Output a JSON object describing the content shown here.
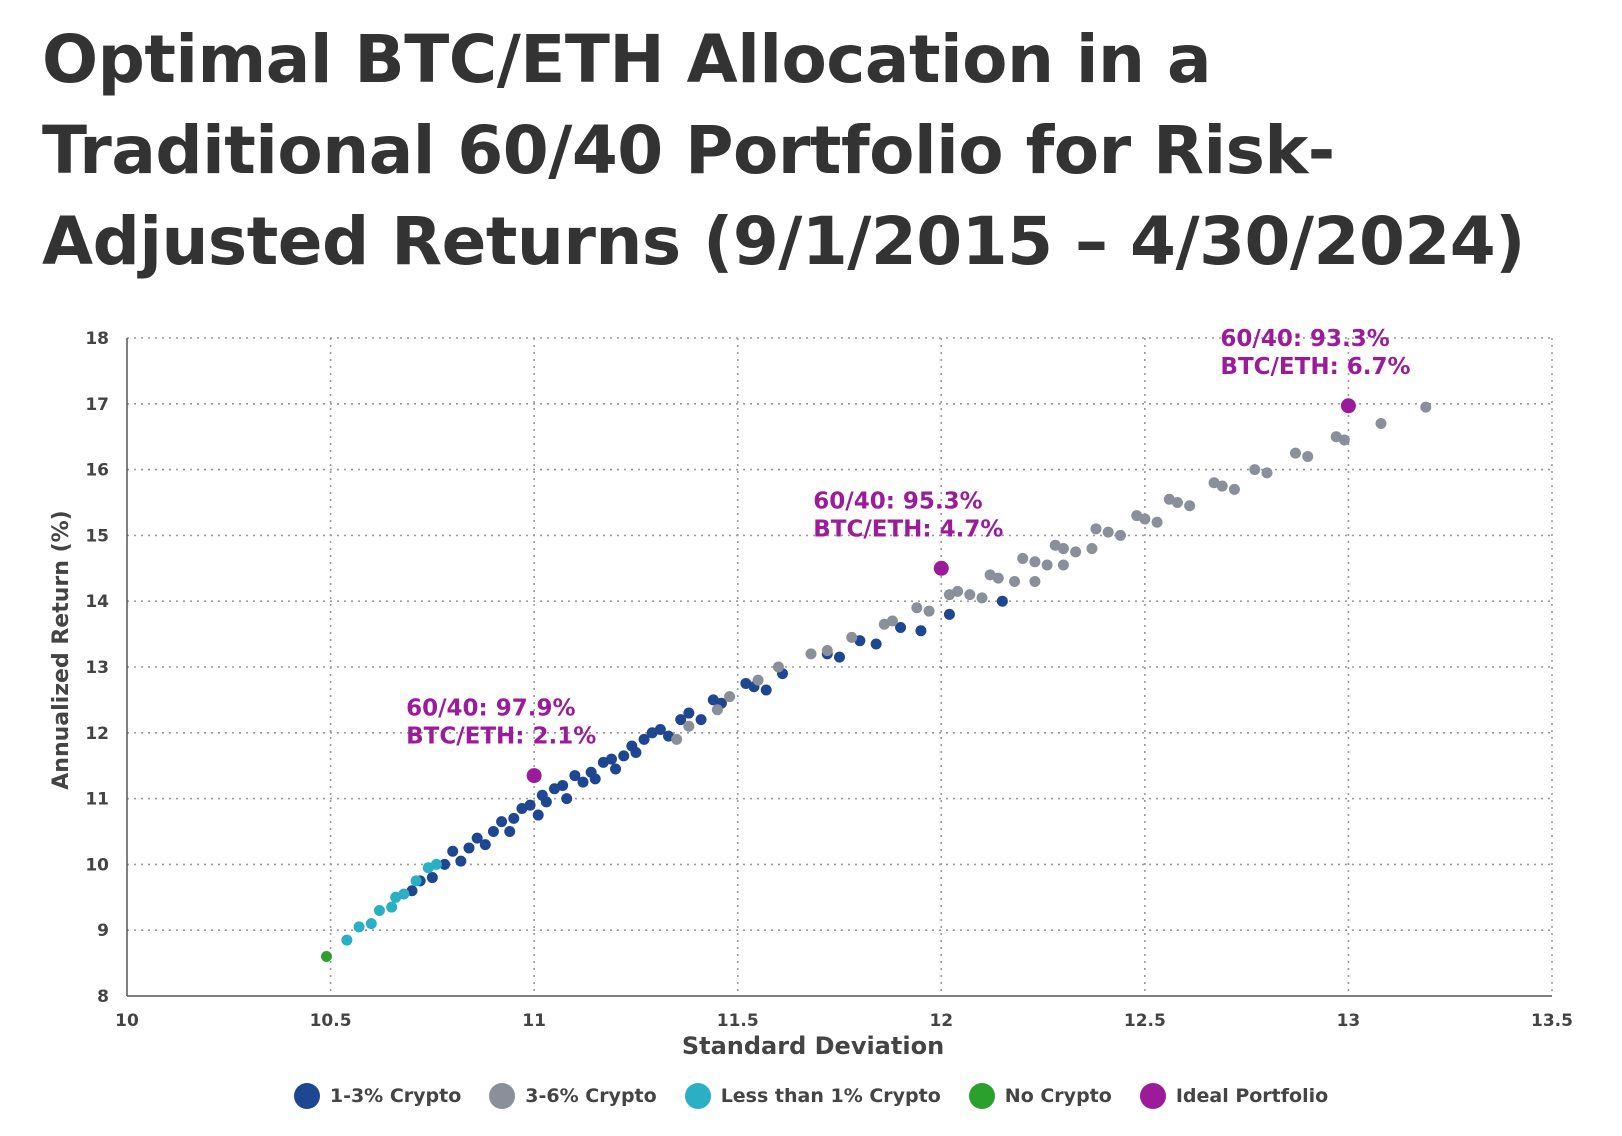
{
  "chart_data": {
    "type": "scatter",
    "title": "Optimal BTC/ETH Allocation in a Traditional 60/40 Portfolio for Risk-Adjusted Returns (9/1/2015 – 4/30/2024)",
    "xlabel": "Standard Deviation",
    "ylabel": "Annualized Return (%)",
    "xlim": [
      10,
      13.5
    ],
    "ylim": [
      8,
      18
    ],
    "xticks": [
      10,
      10.5,
      11,
      11.5,
      12,
      12.5,
      13,
      13.5
    ],
    "xtick_labels": [
      "10",
      "10.5",
      "11",
      "11.5",
      "12",
      "12.5",
      "13",
      "13.5"
    ],
    "yticks": [
      8,
      9,
      10,
      11,
      12,
      13,
      14,
      15,
      16,
      17,
      18
    ],
    "ytick_labels": [
      "8",
      "9",
      "10",
      "11",
      "12",
      "13",
      "14",
      "15",
      "16",
      "17",
      "18"
    ],
    "grid": true,
    "legend_position": "bottom",
    "series": [
      {
        "name": "1-3% Crypto",
        "color": "#1f4690",
        "points": [
          [
            10.7,
            9.6
          ],
          [
            10.72,
            9.75
          ],
          [
            10.75,
            9.8
          ],
          [
            10.78,
            10.0
          ],
          [
            10.8,
            10.2
          ],
          [
            10.82,
            10.05
          ],
          [
            10.84,
            10.25
          ],
          [
            10.86,
            10.4
          ],
          [
            10.88,
            10.3
          ],
          [
            10.9,
            10.5
          ],
          [
            10.92,
            10.65
          ],
          [
            10.94,
            10.5
          ],
          [
            10.95,
            10.7
          ],
          [
            10.97,
            10.85
          ],
          [
            10.99,
            10.9
          ],
          [
            11.01,
            10.75
          ],
          [
            11.02,
            11.05
          ],
          [
            11.03,
            10.95
          ],
          [
            11.05,
            11.15
          ],
          [
            11.07,
            11.2
          ],
          [
            11.08,
            11.0
          ],
          [
            11.1,
            11.35
          ],
          [
            11.12,
            11.25
          ],
          [
            11.14,
            11.4
          ],
          [
            11.15,
            11.3
          ],
          [
            11.17,
            11.55
          ],
          [
            11.19,
            11.6
          ],
          [
            11.2,
            11.45
          ],
          [
            11.22,
            11.65
          ],
          [
            11.24,
            11.8
          ],
          [
            11.25,
            11.7
          ],
          [
            11.27,
            11.9
          ],
          [
            11.29,
            12.0
          ],
          [
            11.31,
            12.05
          ],
          [
            11.33,
            11.95
          ],
          [
            11.36,
            12.2
          ],
          [
            11.38,
            12.3
          ],
          [
            11.41,
            12.2
          ],
          [
            11.44,
            12.5
          ],
          [
            11.46,
            12.45
          ],
          [
            11.52,
            12.75
          ],
          [
            11.54,
            12.7
          ],
          [
            11.57,
            12.65
          ],
          [
            11.61,
            12.9
          ],
          [
            11.72,
            13.2
          ],
          [
            11.75,
            13.15
          ],
          [
            11.8,
            13.4
          ],
          [
            11.84,
            13.35
          ],
          [
            11.9,
            13.6
          ],
          [
            11.95,
            13.55
          ],
          [
            12.02,
            13.8
          ],
          [
            12.15,
            14.0
          ]
        ]
      },
      {
        "name": "3-6% Crypto",
        "color": "#8a8f99",
        "points": [
          [
            11.35,
            11.9
          ],
          [
            11.38,
            12.1
          ],
          [
            11.45,
            12.35
          ],
          [
            11.48,
            12.55
          ],
          [
            11.55,
            12.8
          ],
          [
            11.6,
            13.0
          ],
          [
            11.68,
            13.2
          ],
          [
            11.72,
            13.25
          ],
          [
            11.78,
            13.45
          ],
          [
            11.86,
            13.65
          ],
          [
            11.88,
            13.7
          ],
          [
            11.94,
            13.9
          ],
          [
            11.97,
            13.85
          ],
          [
            12.02,
            14.1
          ],
          [
            12.04,
            14.15
          ],
          [
            12.07,
            14.1
          ],
          [
            12.1,
            14.05
          ],
          [
            12.12,
            14.4
          ],
          [
            12.14,
            14.35
          ],
          [
            12.18,
            14.3
          ],
          [
            12.2,
            14.65
          ],
          [
            12.23,
            14.6
          ],
          [
            12.26,
            14.55
          ],
          [
            12.23,
            14.3
          ],
          [
            12.28,
            14.85
          ],
          [
            12.3,
            14.8
          ],
          [
            12.33,
            14.75
          ],
          [
            12.3,
            14.55
          ],
          [
            12.37,
            14.8
          ],
          [
            12.38,
            15.1
          ],
          [
            12.41,
            15.05
          ],
          [
            12.44,
            15.0
          ],
          [
            12.48,
            15.3
          ],
          [
            12.5,
            15.25
          ],
          [
            12.53,
            15.2
          ],
          [
            12.56,
            15.55
          ],
          [
            12.58,
            15.5
          ],
          [
            12.61,
            15.45
          ],
          [
            12.67,
            15.8
          ],
          [
            12.69,
            15.75
          ],
          [
            12.72,
            15.7
          ],
          [
            12.77,
            16.0
          ],
          [
            12.8,
            15.95
          ],
          [
            12.87,
            16.25
          ],
          [
            12.9,
            16.2
          ],
          [
            12.97,
            16.5
          ],
          [
            12.99,
            16.45
          ],
          [
            13.08,
            16.7
          ],
          [
            13.19,
            16.95
          ]
        ]
      },
      {
        "name": "Less than 1% Crypto",
        "color": "#2ab0c5",
        "points": [
          [
            10.54,
            8.85
          ],
          [
            10.57,
            9.05
          ],
          [
            10.6,
            9.1
          ],
          [
            10.62,
            9.3
          ],
          [
            10.65,
            9.35
          ],
          [
            10.66,
            9.5
          ],
          [
            10.68,
            9.55
          ],
          [
            10.71,
            9.75
          ],
          [
            10.74,
            9.95
          ],
          [
            10.76,
            10.0
          ]
        ]
      },
      {
        "name": "No Crypto",
        "color": "#2ca02c",
        "points": [
          [
            10.49,
            8.6
          ]
        ]
      },
      {
        "name": "Ideal Portfolio",
        "color": "#9b1b9b",
        "points": [
          [
            11.0,
            11.35
          ],
          [
            12.0,
            14.5
          ],
          [
            13.0,
            16.97
          ]
        ]
      }
    ],
    "annotations": [
      {
        "x": 11.0,
        "y": 11.35,
        "lines": [
          "60/40: 97.9%",
          "BTC/ETH: 2.1%"
        ]
      },
      {
        "x": 12.0,
        "y": 14.5,
        "lines": [
          "60/40: 95.3%",
          "BTC/ETH: 4.7%"
        ]
      },
      {
        "x": 13.0,
        "y": 16.97,
        "lines": [
          "60/40: 93.3%",
          "BTC/ETH: 6.7%"
        ]
      }
    ]
  }
}
